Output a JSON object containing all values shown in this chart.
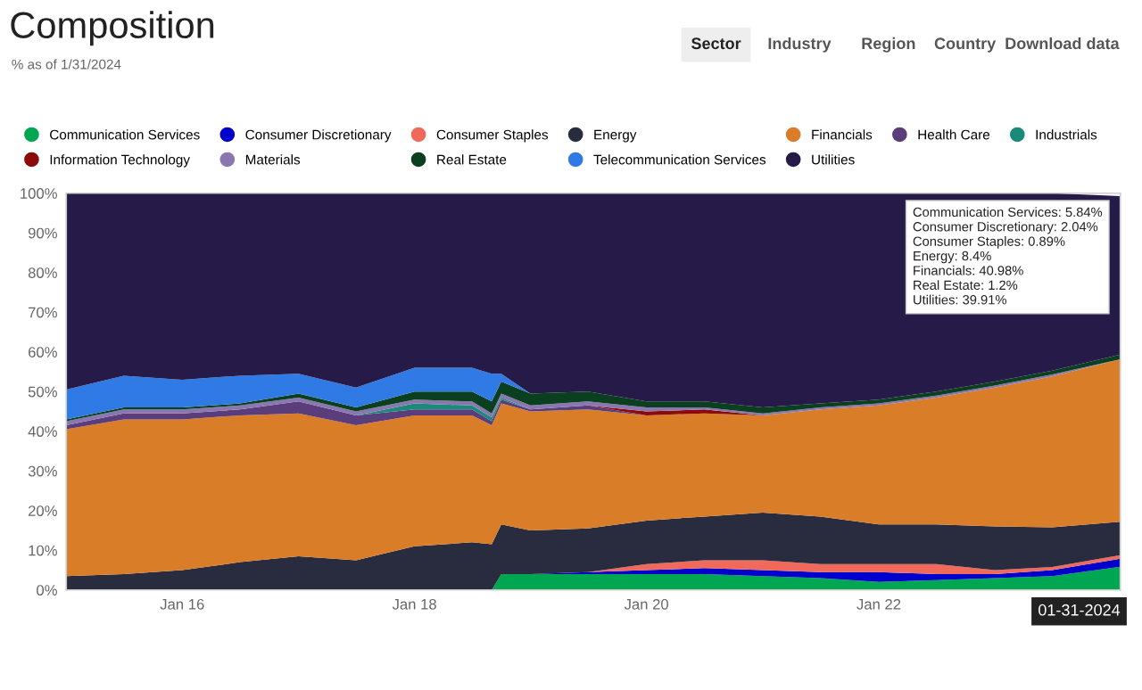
{
  "chart_data": {
    "type": "area",
    "stacked": true,
    "title": "Composition",
    "subtitle": "% as of 1/31/2024",
    "x": [
      "2015-01-01",
      "2015-07-01",
      "2016-01-01",
      "2016-07-01",
      "2017-01-01",
      "2017-07-01",
      "2018-01-01",
      "2018-07-01",
      "2018-09-01",
      "2018-10-01",
      "2019-01-01",
      "2019-07-01",
      "2020-01-01",
      "2020-07-01",
      "2021-01-01",
      "2021-07-01",
      "2022-01-01",
      "2022-07-01",
      "2023-01-01",
      "2023-07-01",
      "2024-01-31"
    ],
    "series": [
      {
        "name": "Communication Services",
        "color": "#00a651",
        "values": [
          null,
          null,
          null,
          null,
          null,
          null,
          null,
          null,
          0,
          4,
          4,
          4,
          4,
          4,
          3.5,
          3,
          2,
          2.5,
          3,
          3.5,
          5.84
        ]
      },
      {
        "name": "Consumer Discretionary",
        "color": "#0000cc",
        "values": [
          null,
          null,
          null,
          null,
          null,
          null,
          null,
          null,
          null,
          null,
          0,
          0.5,
          1,
          1.5,
          1.5,
          1.5,
          2.5,
          1.5,
          1,
          1.5,
          2.04
        ]
      },
      {
        "name": "Consumer Staples",
        "color": "#f0695a",
        "values": [
          null,
          null,
          null,
          null,
          null,
          null,
          null,
          null,
          null,
          null,
          null,
          0,
          1.5,
          2,
          2.5,
          2,
          2,
          2.5,
          1,
          0.8,
          0.89
        ]
      },
      {
        "name": "Energy",
        "color": "#282c3e",
        "values": [
          3.5,
          4,
          5,
          7,
          8.5,
          7.5,
          11,
          12,
          11.5,
          12.5,
          11,
          11,
          11,
          11,
          12,
          12,
          10,
          10,
          11,
          10,
          8.4
        ]
      },
      {
        "name": "Financials",
        "color": "#d97d29",
        "values": [
          37,
          39,
          38,
          37,
          36,
          34,
          33,
          32,
          30,
          30.5,
          30,
          30,
          26.5,
          26,
          24.5,
          27,
          30,
          32,
          35,
          38,
          40.98
        ]
      },
      {
        "name": "Health Care",
        "color": "#5a3d7a",
        "values": [
          1,
          1.5,
          1.5,
          1.5,
          3,
          2.5,
          1.5,
          1.5,
          1,
          1,
          0.5,
          1,
          0,
          null,
          null,
          null,
          null,
          null,
          null,
          null,
          null
        ]
      },
      {
        "name": "Industrials",
        "color": "#1a8a7a",
        "values": [
          null,
          null,
          null,
          null,
          null,
          0,
          1.5,
          1,
          1,
          0.5,
          0,
          null,
          null,
          null,
          null,
          null,
          null,
          null,
          null,
          null,
          null
        ]
      },
      {
        "name": "Information Technology",
        "color": "#8b0a0a",
        "values": [
          null,
          null,
          null,
          null,
          null,
          null,
          null,
          null,
          null,
          null,
          null,
          0,
          1,
          1,
          0,
          null,
          null,
          null,
          null,
          null,
          null
        ]
      },
      {
        "name": "Materials",
        "color": "#8b77b0",
        "values": [
          1,
          1,
          1,
          1,
          1,
          1,
          1,
          1,
          1,
          1,
          1,
          1,
          1,
          0.5,
          0.5,
          0.5,
          0.5,
          0.5,
          0.5,
          0.5,
          0
        ]
      },
      {
        "name": "Real Estate",
        "color": "#0a4020",
        "values": [
          0.5,
          0.5,
          0.5,
          0.5,
          1,
          1,
          2,
          2.5,
          3,
          3,
          3,
          2.5,
          1.5,
          1.5,
          1.5,
          1,
          1,
          1,
          1,
          1,
          1.2
        ]
      },
      {
        "name": "Telecommunication Services",
        "color": "#2f7ae5",
        "values": [
          7.5,
          8,
          7,
          7,
          5,
          5,
          6,
          6,
          7,
          2,
          0,
          null,
          null,
          null,
          null,
          null,
          null,
          null,
          null,
          null,
          null
        ]
      },
      {
        "name": "Utilities",
        "color": "#261a48",
        "values": [
          49.5,
          46,
          47,
          46,
          45.5,
          49,
          44,
          44,
          45.5,
          45.5,
          50.5,
          50,
          52.5,
          52.5,
          54,
          53,
          52,
          50,
          47.5,
          44.7,
          39.91
        ]
      }
    ],
    "xlim": [
      "2015-01-01",
      "2024-01-31"
    ],
    "xticks": [
      {
        "value": "2016-01-01",
        "label": "Jan 16"
      },
      {
        "value": "2018-01-01",
        "label": "Jan 18"
      },
      {
        "value": "2020-01-01",
        "label": "Jan 20"
      },
      {
        "value": "2022-01-01",
        "label": "Jan 22"
      }
    ],
    "ylim": [
      0,
      100
    ],
    "yticks": [
      {
        "value": 0,
        "label": "0%"
      },
      {
        "value": 10,
        "label": "10%"
      },
      {
        "value": 20,
        "label": "20%"
      },
      {
        "value": 30,
        "label": "30%"
      },
      {
        "value": 40,
        "label": "40%"
      },
      {
        "value": 50,
        "label": "50%"
      },
      {
        "value": 60,
        "label": "60%"
      },
      {
        "value": 70,
        "label": "70%"
      },
      {
        "value": 80,
        "label": "80%"
      },
      {
        "value": 90,
        "label": "90%"
      },
      {
        "value": 100,
        "label": "100%"
      }
    ],
    "grid": false,
    "legend": "top",
    "annotations": [
      "Sector",
      "Industry",
      "Region",
      "Country",
      "Download data",
      "Communication Services: 5.84%\nConsumer Discretionary: 2.04%\nConsumer Staples: 0.89%\nEnergy: 8.4%\nFinancials: 40.98%\nReal Estate: 1.2%\nUtilities: 39.91%",
      "01-31-2024"
    ]
  }
}
